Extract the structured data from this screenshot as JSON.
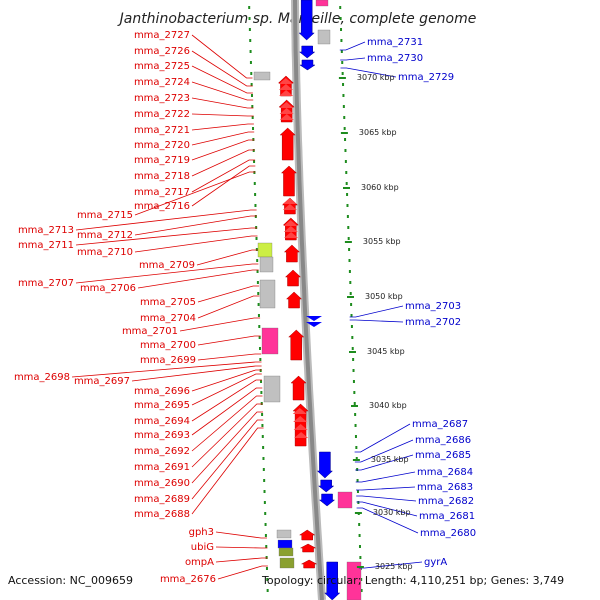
{
  "title": "Janthinobacterium sp. Marseille, complete genome",
  "footer": {
    "accession": "Accession: NC_009659",
    "topology": "Topology: circular; Length: 4,110,251 bp; Genes: 3,749"
  },
  "colors": {
    "forward_gene": "#ff0000",
    "reverse_gene": "#0000ff",
    "gray_feature": "#c0c0c0",
    "pink_feature": "#ff3399",
    "olive_feature": "#8aa030",
    "yellow_feature": "#ccee44",
    "left_label": "#dd0000",
    "right_label": "#0000cc",
    "dotted_track": "#1e8c1e",
    "backbone": "#888888"
  },
  "left_labels": [
    "mma_2727",
    "mma_2726",
    "mma_2725",
    "mma_2724",
    "mma_2723",
    "mma_2722",
    "mma_2721",
    "mma_2720",
    "mma_2719",
    "mma_2718",
    "mma_2717",
    "mma_2716",
    "mma_2715",
    "mma_2713",
    "mma_2712",
    "mma_2711",
    "mma_2710",
    "mma_2709",
    "mma_2707",
    "mma_2706",
    "mma_2705",
    "mma_2704",
    "mma_2701",
    "mma_2700",
    "mma_2699",
    "mma_2698",
    "mma_2697",
    "mma_2696",
    "mma_2695",
    "mma_2694",
    "mma_2693",
    "mma_2692",
    "mma_2691",
    "mma_2690",
    "mma_2689",
    "mma_2688",
    "gph3",
    "ubiG",
    "ompA",
    "mma_2676"
  ],
  "right_labels": [
    "mma_2731",
    "mma_2730",
    "mma_2729",
    "mma_2703",
    "mma_2702",
    "mma_2687",
    "mma_2686",
    "mma_2685",
    "mma_2684",
    "mma_2683",
    "mma_2682",
    "mma_2681",
    "mma_2680",
    "gyrA"
  ],
  "kbp_ticks": [
    "3070 kbp",
    "3065 kbp",
    "3060 kbp",
    "3055 kbp",
    "3050 kbp",
    "3045 kbp",
    "3040 kbp",
    "3035 kbp",
    "3030 kbp",
    "3025 kbp"
  ]
}
